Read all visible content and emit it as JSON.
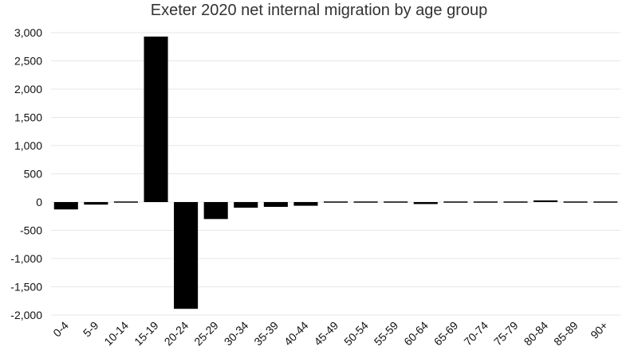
{
  "chart_data": {
    "type": "bar",
    "title": "Exeter 2020 net internal migration by age group",
    "xlabel": "",
    "ylabel": "",
    "categories": [
      "0-4",
      "5-9",
      "10-14",
      "15-19",
      "20-24",
      "25-29",
      "30-34",
      "35-39",
      "40-44",
      "45-49",
      "50-54",
      "55-59",
      "60-64",
      "65-69",
      "70-74",
      "75-79",
      "80-84",
      "85-89",
      "90+"
    ],
    "values": [
      -130,
      -45,
      -20,
      2930,
      -1890,
      -300,
      -100,
      -85,
      -65,
      10,
      5,
      -10,
      -35,
      0,
      10,
      15,
      30,
      -5,
      5
    ],
    "ylim": [
      -2000,
      3000
    ],
    "yticks": [
      3000,
      2500,
      2000,
      1500,
      1000,
      500,
      0,
      -500,
      -1000,
      -1500,
      -2000
    ],
    "ytick_labels": [
      "3,000",
      "2,500",
      "2,000",
      "1,500",
      "1,000",
      "500",
      "0",
      "-500",
      "-1,000",
      "-1,500",
      "-2,000"
    ],
    "grid": true,
    "bar_color": "#000000"
  }
}
